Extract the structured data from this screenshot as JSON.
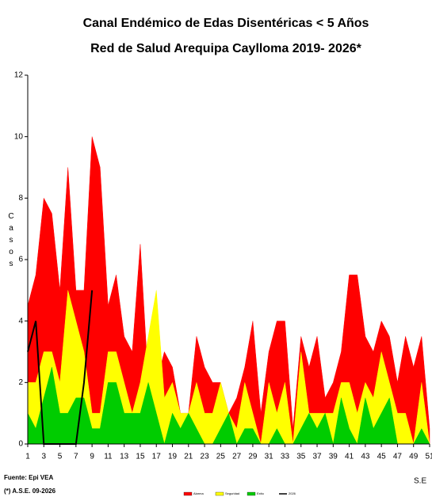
{
  "chart_data": {
    "type": "area",
    "title": "Canal Endémico de Edas Disentéricas  < 5 Años",
    "subtitle": "Red  de Salud Arequipa Caylloma 2019- 2026*",
    "y_label": "Casos",
    "x_label": "S.E",
    "source": "Fuente: Epi VEA",
    "note": "(*) A.S.E. 09-2026",
    "x": [
      1,
      2,
      3,
      4,
      5,
      6,
      7,
      8,
      9,
      10,
      11,
      12,
      13,
      14,
      15,
      16,
      17,
      18,
      19,
      20,
      21,
      22,
      23,
      24,
      25,
      26,
      27,
      28,
      29,
      30,
      31,
      32,
      33,
      34,
      35,
      36,
      37,
      38,
      39,
      40,
      41,
      42,
      43,
      44,
      45,
      46,
      47,
      48,
      49,
      50,
      51
    ],
    "series": [
      {
        "name": "Alarma",
        "color": "#ff0000",
        "values": [
          4.5,
          5.5,
          8,
          7.5,
          5,
          9,
          5,
          5,
          10,
          9,
          4.5,
          5.5,
          3.5,
          3,
          6.5,
          2,
          2,
          3,
          2.5,
          1,
          1,
          3.5,
          2.5,
          2,
          2,
          1,
          1.5,
          2.5,
          4,
          1,
          3,
          4,
          4,
          0.5,
          3.5,
          2.5,
          3.5,
          1.5,
          2,
          3,
          5.5,
          5.5,
          3.5,
          3,
          4,
          3.5,
          2,
          3.5,
          2.5,
          3.5,
          0.5
        ]
      },
      {
        "name": "Seguridad",
        "color": "#ffff00",
        "values": [
          2,
          2,
          3,
          3,
          2,
          5,
          4,
          3,
          1,
          1,
          3,
          3,
          2,
          1,
          2,
          3.5,
          5,
          1.5,
          2,
          1,
          1,
          2,
          1,
          1,
          2,
          1,
          0.5,
          2,
          1,
          0,
          2,
          1,
          2,
          0,
          3,
          1,
          1,
          1,
          1,
          2,
          2,
          1,
          2,
          1.5,
          3,
          2,
          1,
          1,
          0,
          2,
          0
        ]
      },
      {
        "name": "Exito",
        "color": "#00cc00",
        "values": [
          1,
          0.5,
          1.5,
          2.5,
          1,
          1,
          1.5,
          1.5,
          0.5,
          0.5,
          2,
          2,
          1,
          1,
          1,
          2,
          1,
          0,
          1,
          0.5,
          1,
          0.5,
          0,
          0,
          0.5,
          1,
          0,
          0.5,
          0.5,
          0,
          0,
          0.5,
          0,
          0,
          0.5,
          1,
          0.5,
          1,
          0,
          1.5,
          0.5,
          0,
          1.5,
          0.5,
          1,
          1.5,
          0,
          0,
          0,
          0.5,
          0
        ]
      },
      {
        "name": "2026",
        "color": "#000000",
        "line": true,
        "values": [
          3,
          4,
          0,
          0,
          0,
          0,
          0,
          2,
          5,
          null,
          null,
          null,
          null,
          null,
          null,
          null,
          null,
          null,
          null,
          null,
          null,
          null,
          null,
          null,
          null,
          null,
          null,
          null,
          null,
          null,
          null,
          null,
          null,
          null,
          null,
          null,
          null,
          null,
          null,
          null,
          null,
          null,
          null,
          null,
          null,
          null,
          null,
          null,
          null,
          null,
          null
        ]
      }
    ],
    "xlim": [
      1,
      51
    ],
    "xticks": [
      1,
      3,
      5,
      7,
      9,
      11,
      13,
      15,
      17,
      19,
      21,
      23,
      25,
      27,
      29,
      31,
      33,
      35,
      37,
      39,
      41,
      43,
      45,
      47,
      49,
      51
    ],
    "ylim": [
      0,
      12
    ],
    "yticks": [
      0,
      2,
      4,
      6,
      8,
      10,
      12
    ],
    "grid": false
  }
}
